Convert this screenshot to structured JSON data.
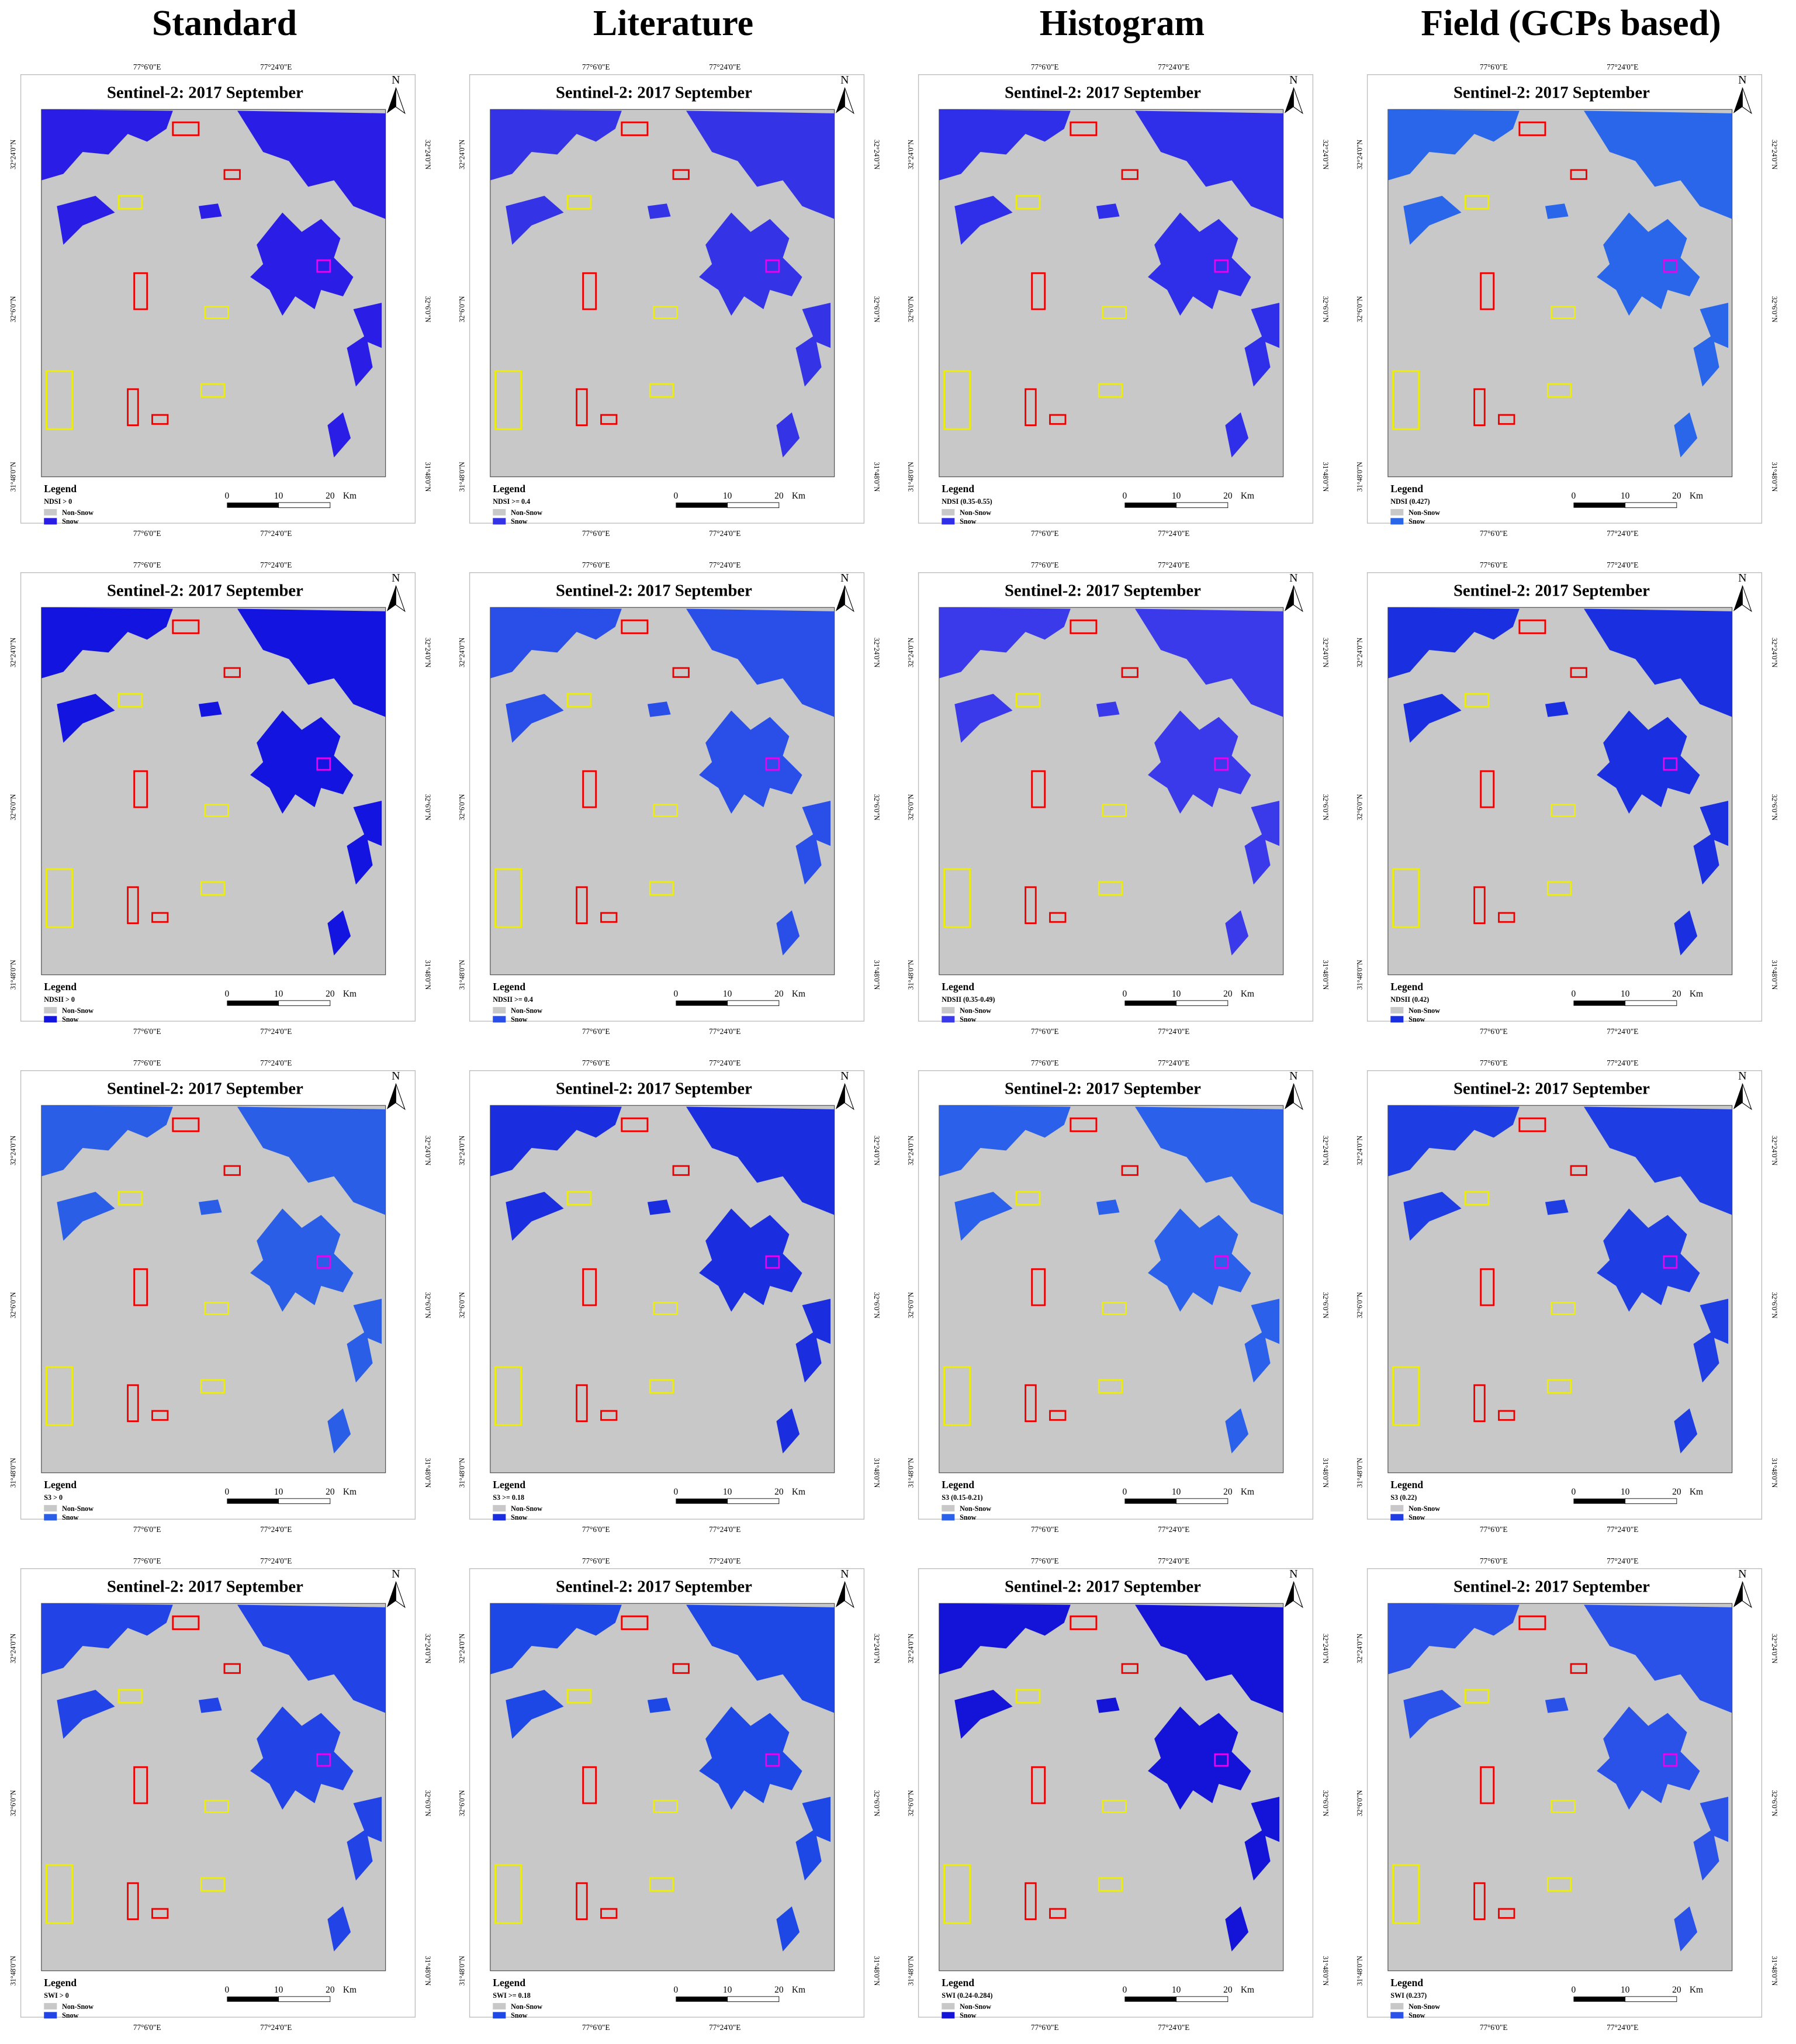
{
  "columns": [
    "Standard",
    "Literature",
    "Histogram",
    "Field (GCPs based)"
  ],
  "map_labels": {
    "title": "Sentinel-2: 2017 September",
    "north": "N",
    "lon": [
      "77°6'0\"E",
      "77°24'0\"E"
    ],
    "lat": [
      "32°24'0\"N",
      "32°6'0\"N",
      "31°48'0\"N"
    ],
    "legend": "Legend",
    "classes": [
      "Non-Snow",
      "Snow"
    ],
    "scale": [
      "0",
      "10",
      "20",
      "Km"
    ]
  },
  "panels": [
    [
      {
        "rule": "NDSI > 0",
        "snow_color": "#2a1ee6"
      },
      {
        "rule": "NDSI >= 0.4",
        "snow_color": "#3434e6"
      },
      {
        "rule": "NDSI (0.35-0.55)",
        "snow_color": "#2f2fea"
      },
      {
        "rule": "NDSI (0.427)",
        "snow_color": "#2a66ea"
      }
    ],
    [
      {
        "rule": "NDSII > 0",
        "snow_color": "#1414e0"
      },
      {
        "rule": "NDSII >= 0.4",
        "snow_color": "#2a4ee8"
      },
      {
        "rule": "NDSII (0.35-0.49)",
        "snow_color": "#3a3aea"
      },
      {
        "rule": "NDSII (0.42)",
        "snow_color": "#1a30e0"
      }
    ],
    [
      {
        "rule": "S3 > 0",
        "snow_color": "#2a5ee6"
      },
      {
        "rule": "S3 >= 0.18",
        "snow_color": "#1a2ee0"
      },
      {
        "rule": "S3 (0.15-0.21)",
        "snow_color": "#2a60ea"
      },
      {
        "rule": "S3 (0.22)",
        "snow_color": "#1e3ee4"
      }
    ],
    [
      {
        "rule": "SWI > 0",
        "snow_color": "#2244e6"
      },
      {
        "rule": "SWI >= 0.18",
        "snow_color": "#1e48e6"
      },
      {
        "rule": "SWI (0.24-0.284)",
        "snow_color": "#1414d8"
      },
      {
        "rule": "SWI (0.237)",
        "snow_color": "#2a52e8"
      }
    ]
  ]
}
